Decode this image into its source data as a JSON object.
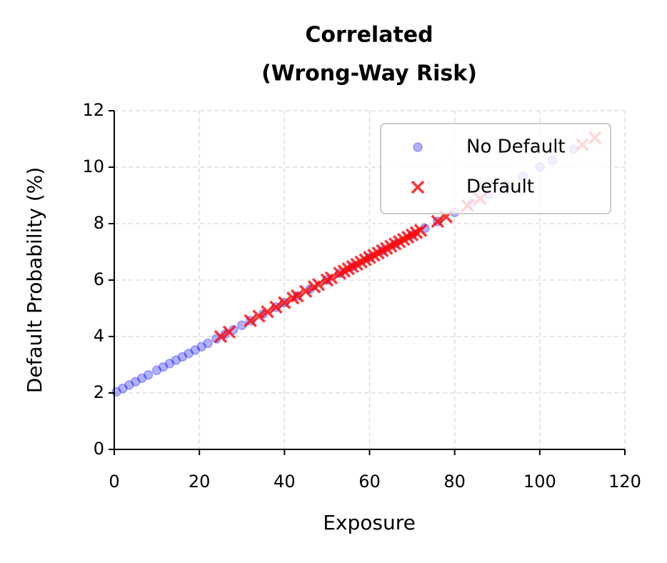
{
  "chart_data": {
    "type": "scatter",
    "title": [
      "Correlated",
      "(Wrong-Way Risk)"
    ],
    "x_label": "Exposure",
    "y_label": "Default Probability (%)",
    "xlim": [
      0,
      120
    ],
    "xticks": [
      0,
      20,
      40,
      60,
      80,
      100,
      120
    ],
    "ylim": [
      0,
      12
    ],
    "yticks": [
      0,
      2,
      4,
      6,
      8,
      10,
      12
    ],
    "grid": true,
    "legend": "upper right",
    "series": [
      {
        "name": "No Default",
        "color": "#0000ff",
        "alpha": 0.3,
        "marker": "o",
        "x": [
          0.5,
          2,
          3.5,
          5,
          6.5,
          8,
          10,
          11.5,
          13,
          14.5,
          16,
          17.5,
          19,
          20.5,
          22,
          24,
          26,
          28,
          30,
          32,
          35,
          38,
          40,
          43,
          46,
          50,
          53,
          56,
          60,
          63,
          66,
          70,
          73,
          76,
          80,
          84,
          88,
          92,
          96,
          100,
          103,
          108
        ],
        "y": [
          2.04,
          2.16,
          2.28,
          2.4,
          2.52,
          2.64,
          2.8,
          2.92,
          3.04,
          3.16,
          3.28,
          3.4,
          3.52,
          3.64,
          3.76,
          3.92,
          4.08,
          4.24,
          4.4,
          4.56,
          4.8,
          5.04,
          5.2,
          5.44,
          5.68,
          6.0,
          6.24,
          6.48,
          6.8,
          7.04,
          7.28,
          7.6,
          7.84,
          8.08,
          8.4,
          8.72,
          9.04,
          9.36,
          9.68,
          10.0,
          10.24,
          10.64
        ]
      },
      {
        "name": "Default",
        "color": "#ff0000",
        "alpha": 0.8,
        "marker": "x",
        "x": [
          25,
          27,
          32,
          34,
          36,
          38,
          40,
          42,
          43,
          45,
          47,
          48,
          50,
          51,
          53,
          54,
          55,
          56,
          57,
          58,
          59,
          60,
          61,
          62,
          63,
          64,
          65,
          66,
          67,
          68,
          69,
          70,
          71,
          72,
          76,
          78,
          83,
          86,
          110,
          113
        ],
        "y": [
          4.0,
          4.16,
          4.56,
          4.72,
          4.88,
          5.04,
          5.2,
          5.36,
          5.44,
          5.6,
          5.76,
          5.84,
          6.0,
          6.08,
          6.24,
          6.32,
          6.4,
          6.48,
          6.56,
          6.64,
          6.72,
          6.8,
          6.88,
          6.96,
          7.04,
          7.12,
          7.2,
          7.28,
          7.36,
          7.44,
          7.52,
          7.6,
          7.68,
          7.76,
          8.08,
          8.24,
          8.64,
          8.88,
          10.8,
          11.04
        ]
      }
    ]
  }
}
